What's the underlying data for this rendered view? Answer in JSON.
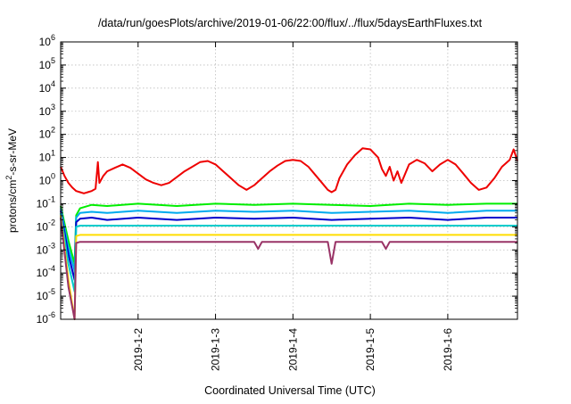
{
  "chart_data": {
    "type": "line",
    "title": "/data/run/goesPlots/archive/2019-01-06/22:00/flux/../flux/5daysEarthFluxes.txt",
    "xlabel": "Coordinated Universal Time (UTC)",
    "ylabel_parts": {
      "pre": "protons/cm",
      "sup": "2",
      "post": "-s-sr-MeV"
    },
    "log_y": true,
    "grid": true,
    "xlim": [
      0,
      5.9
    ],
    "ylim_exp": [
      -6,
      6
    ],
    "x_unit": "days after 2019-01-01 00:00 UTC",
    "x_ticks": [
      {
        "x": 1,
        "label": "2019-1-2"
      },
      {
        "x": 2,
        "label": "2019-1-3"
      },
      {
        "x": 3,
        "label": "2019-1-4"
      },
      {
        "x": 4,
        "label": "2019-1-5"
      },
      {
        "x": 5,
        "label": "2019-1-6"
      }
    ],
    "y_ticks": [
      {
        "exp": -6,
        "base": "10",
        "sup": "-6"
      },
      {
        "exp": -5,
        "base": "10",
        "sup": "-5"
      },
      {
        "exp": -4,
        "base": "10",
        "sup": "-4"
      },
      {
        "exp": -3,
        "base": "10",
        "sup": "-3"
      },
      {
        "exp": -2,
        "base": "10",
        "sup": "-2"
      },
      {
        "exp": -1,
        "base": "10",
        "sup": "-1"
      },
      {
        "exp": 0,
        "base": "10",
        "sup": "0"
      },
      {
        "exp": 1,
        "base": "10",
        "sup": "1"
      },
      {
        "exp": 2,
        "base": "10",
        "sup": "2"
      },
      {
        "exp": 3,
        "base": "10",
        "sup": "3"
      },
      {
        "exp": 4,
        "base": "10",
        "sup": "4"
      },
      {
        "exp": 5,
        "base": "10",
        "sup": "5"
      },
      {
        "exp": 6,
        "base": "10",
        "sup": "6"
      }
    ],
    "series": [
      {
        "color": "#ee0000",
        "points": [
          [
            0,
            0.6
          ],
          [
            0.05,
            0.2
          ],
          [
            0.1,
            -0.1
          ],
          [
            0.15,
            -0.3
          ],
          [
            0.2,
            -0.45
          ],
          [
            0.25,
            -0.5
          ],
          [
            0.3,
            -0.55
          ],
          [
            0.35,
            -0.5
          ],
          [
            0.4,
            -0.45
          ],
          [
            0.45,
            -0.35
          ],
          [
            0.48,
            0.8
          ],
          [
            0.5,
            -0.1
          ],
          [
            0.55,
            0.2
          ],
          [
            0.6,
            0.4
          ],
          [
            0.7,
            0.55
          ],
          [
            0.8,
            0.7
          ],
          [
            0.9,
            0.55
          ],
          [
            1.0,
            0.3
          ],
          [
            1.1,
            0.05
          ],
          [
            1.2,
            -0.1
          ],
          [
            1.3,
            -0.2
          ],
          [
            1.4,
            -0.1
          ],
          [
            1.5,
            0.15
          ],
          [
            1.6,
            0.4
          ],
          [
            1.7,
            0.6
          ],
          [
            1.8,
            0.8
          ],
          [
            1.9,
            0.85
          ],
          [
            2.0,
            0.7
          ],
          [
            2.1,
            0.4
          ],
          [
            2.2,
            0.1
          ],
          [
            2.3,
            -0.2
          ],
          [
            2.4,
            -0.4
          ],
          [
            2.5,
            -0.2
          ],
          [
            2.6,
            0.1
          ],
          [
            2.7,
            0.4
          ],
          [
            2.8,
            0.65
          ],
          [
            2.9,
            0.85
          ],
          [
            3.0,
            0.9
          ],
          [
            3.1,
            0.85
          ],
          [
            3.2,
            0.6
          ],
          [
            3.3,
            0.2
          ],
          [
            3.4,
            -0.2
          ],
          [
            3.45,
            -0.4
          ],
          [
            3.5,
            -0.5
          ],
          [
            3.55,
            -0.4
          ],
          [
            3.6,
            0.1
          ],
          [
            3.7,
            0.7
          ],
          [
            3.8,
            1.1
          ],
          [
            3.9,
            1.4
          ],
          [
            4.0,
            1.35
          ],
          [
            4.1,
            1.0
          ],
          [
            4.15,
            0.5
          ],
          [
            4.2,
            0.2
          ],
          [
            4.25,
            0.6
          ],
          [
            4.3,
            0.0
          ],
          [
            4.35,
            0.4
          ],
          [
            4.4,
            -0.1
          ],
          [
            4.45,
            0.3
          ],
          [
            4.5,
            0.7
          ],
          [
            4.6,
            0.9
          ],
          [
            4.7,
            0.75
          ],
          [
            4.8,
            0.4
          ],
          [
            4.9,
            0.7
          ],
          [
            5.0,
            0.9
          ],
          [
            5.1,
            0.7
          ],
          [
            5.2,
            0.3
          ],
          [
            5.3,
            -0.1
          ],
          [
            5.4,
            -0.4
          ],
          [
            5.5,
            -0.3
          ],
          [
            5.6,
            0.1
          ],
          [
            5.7,
            0.6
          ],
          [
            5.8,
            0.9
          ],
          [
            5.85,
            1.35
          ],
          [
            5.9,
            0.85
          ]
        ]
      },
      {
        "color": "#00ee00",
        "points": [
          [
            0,
            -1.1
          ],
          [
            0.1,
            -2.6
          ],
          [
            0.18,
            -3.6
          ],
          [
            0.2,
            -1.5
          ],
          [
            0.25,
            -1.2
          ],
          [
            0.4,
            -1.05
          ],
          [
            0.6,
            -1.1
          ],
          [
            1.0,
            -1.0
          ],
          [
            1.5,
            -1.1
          ],
          [
            2.0,
            -1.0
          ],
          [
            2.5,
            -1.05
          ],
          [
            3.0,
            -1.0
          ],
          [
            3.5,
            -1.05
          ],
          [
            4.0,
            -1.1
          ],
          [
            4.5,
            -1.0
          ],
          [
            5.0,
            -1.05
          ],
          [
            5.5,
            -1.0
          ],
          [
            5.9,
            -1.0
          ]
        ]
      },
      {
        "color": "#00aaee",
        "points": [
          [
            0,
            -1.2
          ],
          [
            0.1,
            -2.9
          ],
          [
            0.18,
            -3.9
          ],
          [
            0.2,
            -1.6
          ],
          [
            0.25,
            -1.4
          ],
          [
            0.4,
            -1.35
          ],
          [
            0.6,
            -1.4
          ],
          [
            1.0,
            -1.3
          ],
          [
            1.5,
            -1.4
          ],
          [
            2.0,
            -1.3
          ],
          [
            2.5,
            -1.35
          ],
          [
            3.0,
            -1.3
          ],
          [
            3.5,
            -1.4
          ],
          [
            4.0,
            -1.35
          ],
          [
            4.5,
            -1.3
          ],
          [
            5.0,
            -1.4
          ],
          [
            5.5,
            -1.3
          ],
          [
            5.9,
            -1.3
          ]
        ]
      },
      {
        "color": "#0000cc",
        "points": [
          [
            0,
            -1.3
          ],
          [
            0.1,
            -3.2
          ],
          [
            0.18,
            -4.3
          ],
          [
            0.2,
            -1.8
          ],
          [
            0.25,
            -1.65
          ],
          [
            0.4,
            -1.6
          ],
          [
            0.6,
            -1.7
          ],
          [
            1.0,
            -1.6
          ],
          [
            1.5,
            -1.7
          ],
          [
            2.0,
            -1.6
          ],
          [
            2.5,
            -1.65
          ],
          [
            3.0,
            -1.6
          ],
          [
            3.5,
            -1.7
          ],
          [
            4.0,
            -1.65
          ],
          [
            4.5,
            -1.6
          ],
          [
            5.0,
            -1.7
          ],
          [
            5.5,
            -1.6
          ],
          [
            5.9,
            -1.6
          ]
        ]
      },
      {
        "color": "#00cccc",
        "points": [
          [
            0,
            -1.4
          ],
          [
            0.1,
            -3.6
          ],
          [
            0.18,
            -4.8
          ],
          [
            0.2,
            -2.0
          ],
          [
            0.25,
            -1.95
          ],
          [
            0.6,
            -1.95
          ],
          [
            1.0,
            -1.95
          ],
          [
            2.0,
            -1.95
          ],
          [
            3.0,
            -1.95
          ],
          [
            4.0,
            -1.95
          ],
          [
            4.5,
            -1.95
          ],
          [
            5.0,
            -1.95
          ],
          [
            5.9,
            -1.95
          ]
        ]
      },
      {
        "color": "#ffdd00",
        "points": [
          [
            0,
            -1.5
          ],
          [
            0.1,
            -4.3
          ],
          [
            0.18,
            -6.0
          ],
          [
            0.2,
            -2.4
          ],
          [
            0.25,
            -2.35
          ],
          [
            1.0,
            -2.35
          ],
          [
            2.0,
            -2.35
          ],
          [
            3.0,
            -2.35
          ],
          [
            4.0,
            -2.35
          ],
          [
            5.0,
            -2.35
          ],
          [
            5.9,
            -2.35
          ]
        ]
      },
      {
        "color": "#993366",
        "points": [
          [
            0,
            -1.6
          ],
          [
            0.1,
            -4.6
          ],
          [
            0.18,
            -6.0
          ],
          [
            0.2,
            -2.7
          ],
          [
            0.25,
            -2.65
          ],
          [
            1.0,
            -2.65
          ],
          [
            1.5,
            -2.65
          ],
          [
            2.0,
            -2.65
          ],
          [
            2.5,
            -2.65
          ],
          [
            2.55,
            -2.95
          ],
          [
            2.6,
            -2.65
          ],
          [
            3.0,
            -2.65
          ],
          [
            3.45,
            -2.65
          ],
          [
            3.5,
            -3.6
          ],
          [
            3.55,
            -2.65
          ],
          [
            4.0,
            -2.65
          ],
          [
            4.15,
            -2.65
          ],
          [
            4.2,
            -2.95
          ],
          [
            4.25,
            -2.65
          ],
          [
            5.0,
            -2.65
          ],
          [
            5.5,
            -2.65
          ],
          [
            5.9,
            -2.65
          ]
        ]
      }
    ]
  }
}
